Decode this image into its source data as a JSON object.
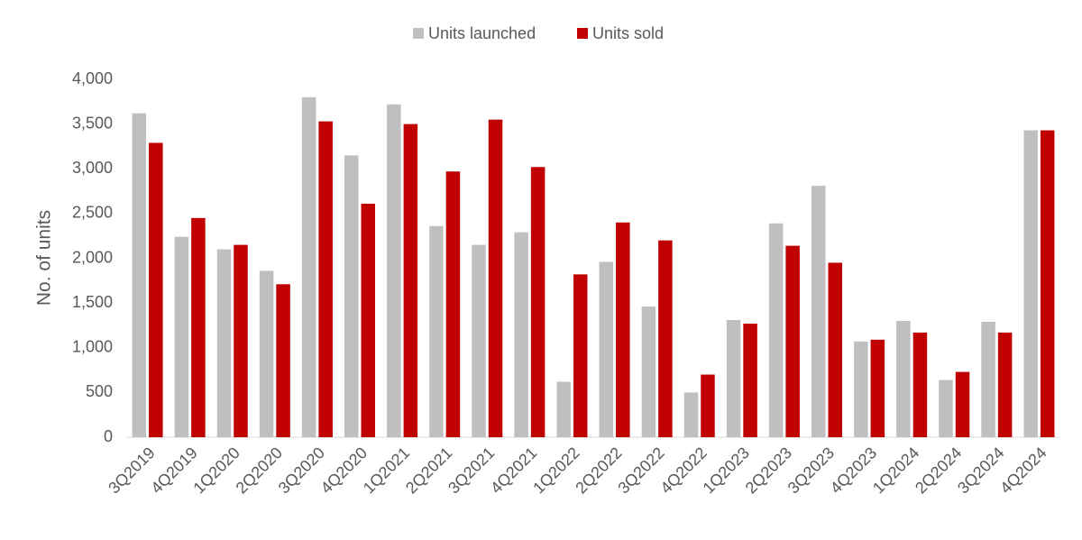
{
  "chart_data": {
    "type": "bar",
    "y_label": "No. of units",
    "categories": [
      "3Q2019",
      "4Q2019",
      "1Q2020",
      "2Q2020",
      "3Q2020",
      "4Q2020",
      "1Q2021",
      "2Q2021",
      "3Q2021",
      "4Q2021",
      "1Q2022",
      "2Q2022",
      "3Q2022",
      "4Q2022",
      "1Q2023",
      "2Q2023",
      "3Q2023",
      "4Q2023",
      "1Q2024",
      "2Q2024",
      "3Q2024",
      "4Q2024"
    ],
    "series": [
      {
        "name": "Units launched",
        "color": "#bfbfbf",
        "values": [
          3620,
          2240,
          2100,
          1860,
          3800,
          3150,
          3720,
          2360,
          2150,
          2290,
          620,
          1960,
          1460,
          500,
          1310,
          2390,
          2810,
          1070,
          1300,
          640,
          1290,
          3430
        ]
      },
      {
        "name": "Units sold",
        "color": "#c00000",
        "values": [
          3290,
          2450,
          2150,
          1710,
          3530,
          2610,
          3500,
          2970,
          3550,
          3020,
          1820,
          2400,
          2200,
          700,
          1270,
          2140,
          1950,
          1090,
          1170,
          730,
          1170,
          3430
        ]
      }
    ],
    "ylim": [
      0,
      4000
    ],
    "yticks": [
      0,
      500,
      {
        "value": 1000,
        "label": "1,000"
      },
      {
        "value": 1500,
        "label": "1,500"
      },
      {
        "value": 2000,
        "label": "2,000"
      },
      {
        "value": 2500,
        "label": "2,500"
      },
      {
        "value": 3000,
        "label": "3,000"
      },
      {
        "value": 3500,
        "label": "3,500"
      },
      {
        "value": 4000,
        "label": "4,000"
      }
    ],
    "grid": false,
    "legend": "top"
  }
}
